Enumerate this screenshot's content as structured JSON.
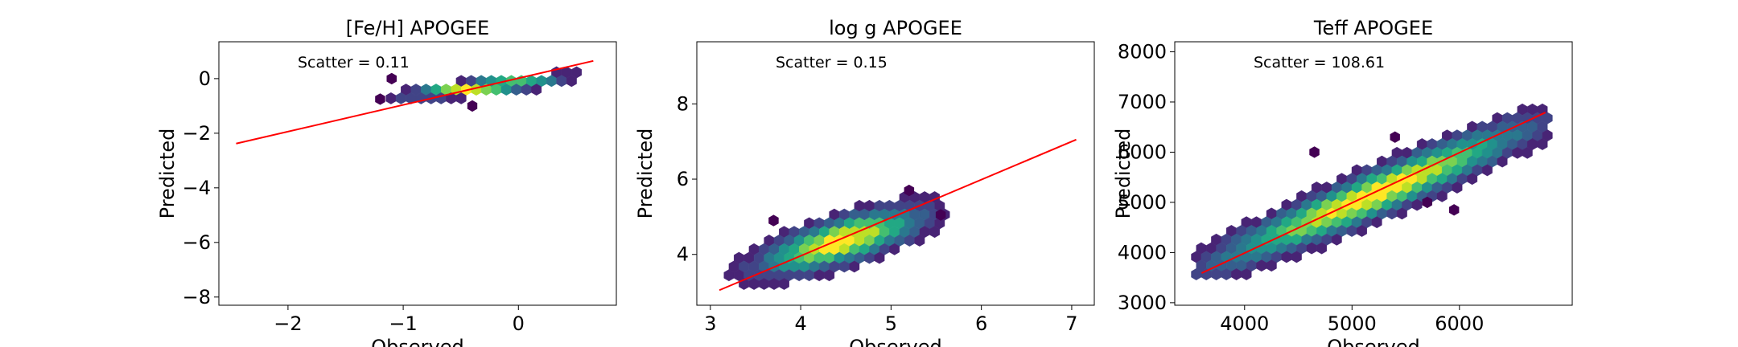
{
  "chart_data": [
    {
      "type": "hexbin",
      "title": "[Fe/H] APOGEE",
      "xlabel": "Observed",
      "ylabel": "Predicted",
      "xlim": [
        -2.6,
        0.85
      ],
      "ylim": [
        -8.3,
        1.35
      ],
      "xticks": [
        -2,
        -1,
        0
      ],
      "yticks": [
        0,
        -2,
        -4,
        -6,
        -8
      ],
      "tick_labels_x": [
        "−2",
        "−1",
        "0"
      ],
      "tick_labels_y": [
        "0",
        "−2",
        "−4",
        "−6",
        "−8"
      ],
      "annotation": "Scatter = 0.11",
      "fit_line": {
        "x": [
          -2.45,
          0.65
        ],
        "y": [
          -2.38,
          0.65
        ],
        "color": "#ff0000"
      },
      "density": {
        "center": [
          -0.3,
          -0.3
        ],
        "dir": [
          0.9,
          0.45
        ],
        "x_range": [
          -1.15,
          0.55
        ],
        "y_range": [
          -0.9,
          0.55
        ],
        "sigma_along": 0.42,
        "sigma_across": 0.13,
        "outliers": [
          [
            -1.1,
            0.0
          ],
          [
            -1.2,
            -0.75
          ],
          [
            -0.4,
            -1.0
          ]
        ]
      }
    },
    {
      "type": "hexbin",
      "title": "log g APOGEE",
      "xlabel": "Observed",
      "ylabel": "Predicted",
      "xlim": [
        2.85,
        7.25
      ],
      "ylim": [
        2.65,
        9.65
      ],
      "xticks": [
        3,
        4,
        5,
        6,
        7
      ],
      "yticks": [
        4,
        6,
        8
      ],
      "tick_labels_x": [
        "3",
        "4",
        "5",
        "6",
        "7"
      ],
      "tick_labels_y": [
        "4",
        "6",
        "8"
      ],
      "annotation": "Scatter = 0.15",
      "fit_line": {
        "x": [
          3.1,
          7.05
        ],
        "y": [
          3.05,
          7.05
        ],
        "color": "#ff0000"
      },
      "density": {
        "center": [
          4.45,
          4.35
        ],
        "dir": [
          0.73,
          0.68
        ],
        "x_range": [
          3.15,
          5.6
        ],
        "y_range": [
          3.05,
          5.75
        ],
        "sigma_along": 0.65,
        "sigma_across": 0.26,
        "outliers": [
          [
            3.7,
            4.9
          ],
          [
            5.55,
            5.05
          ],
          [
            5.2,
            5.7
          ]
        ]
      }
    },
    {
      "type": "hexbin",
      "title": "Teff APOGEE",
      "xlabel": "Observed",
      "ylabel": "Predicted",
      "xlim": [
        3350,
        7050
      ],
      "ylim": [
        2950,
        8200
      ],
      "xticks": [
        4000,
        5000,
        6000
      ],
      "yticks": [
        3000,
        4000,
        5000,
        6000,
        7000,
        8000
      ],
      "tick_labels_x": [
        "4000",
        "5000",
        "6000"
      ],
      "tick_labels_y": [
        "3000",
        "4000",
        "5000",
        "6000",
        "7000",
        "8000"
      ],
      "annotation": "Scatter = 108.61",
      "fit_line": {
        "x": [
          3600,
          6800
        ],
        "y": [
          3590,
          6790
        ],
        "color": "#ff0000"
      },
      "density": {
        "center": [
          5200,
          5150
        ],
        "dir": [
          0.72,
          0.69
        ],
        "x_range": [
          3550,
          6850
        ],
        "y_range": [
          3400,
          6850
        ],
        "sigma_along": 1150,
        "sigma_across": 190,
        "outliers": [
          [
            4650,
            6000
          ],
          [
            5400,
            6300
          ],
          [
            5950,
            4850
          ],
          [
            5700,
            5000
          ]
        ]
      }
    }
  ]
}
